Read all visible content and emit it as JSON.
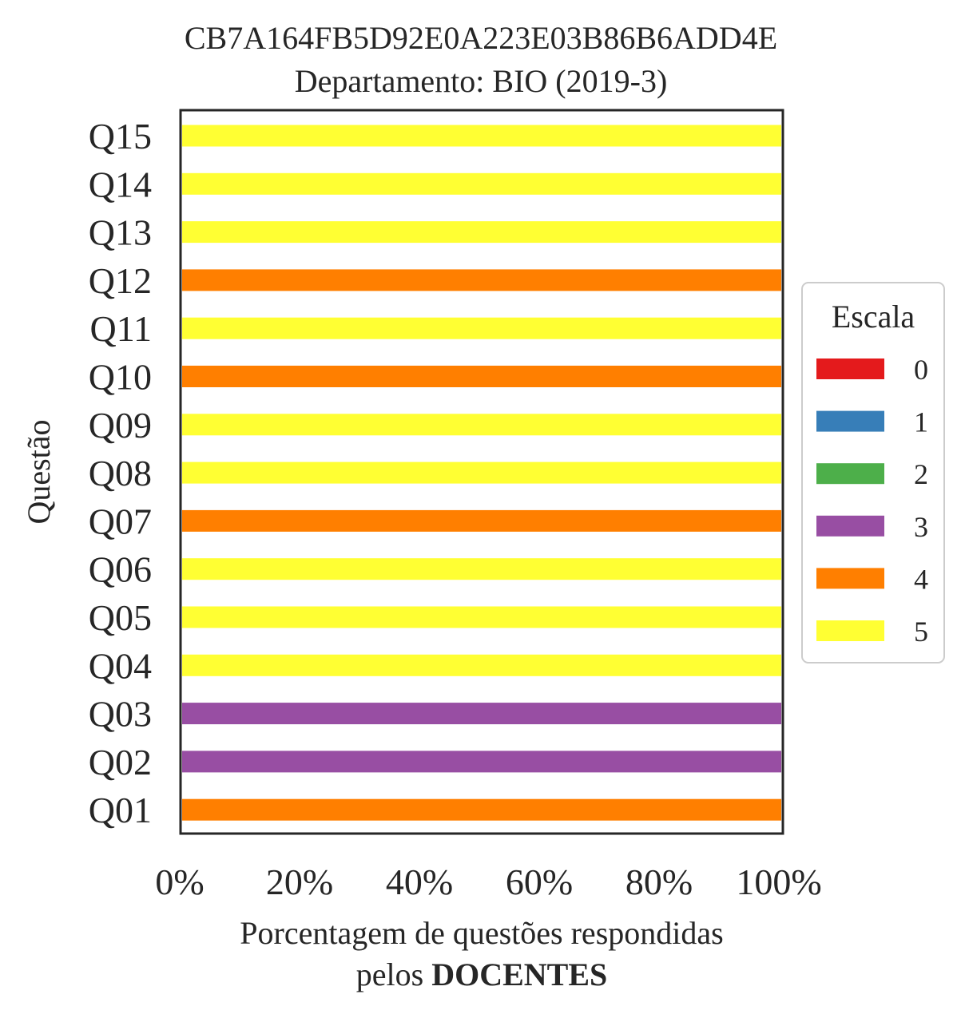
{
  "chart_data": {
    "type": "bar",
    "orientation": "horizontal",
    "stacked": true,
    "title_line1": "CB7A164FB5D92E0A223E03B86B6ADD4E",
    "title_line2": "Departamento: BIO (2019-3)",
    "ylabel": "Questão",
    "xlabel_line1": "Porcentagem de questões respondidas",
    "xlabel_line2_prefix": "pelos ",
    "xlabel_line2_bold": "DOCENTES",
    "xlim": [
      0,
      100
    ],
    "xticks": [
      "0%",
      "20%",
      "40%",
      "60%",
      "80%",
      "100%"
    ],
    "categories": [
      "Q01",
      "Q02",
      "Q03",
      "Q04",
      "Q05",
      "Q06",
      "Q07",
      "Q08",
      "Q09",
      "Q10",
      "Q11",
      "Q12",
      "Q13",
      "Q14",
      "Q15"
    ],
    "series": [
      {
        "name": "0",
        "color": "#e41a1c",
        "values": [
          0,
          0,
          0,
          0,
          0,
          0,
          0,
          0,
          0,
          0,
          0,
          0,
          0,
          0,
          0
        ]
      },
      {
        "name": "1",
        "color": "#377eb8",
        "values": [
          0,
          0,
          0,
          0,
          0,
          0,
          0,
          0,
          0,
          0,
          0,
          0,
          0,
          0,
          0
        ]
      },
      {
        "name": "2",
        "color": "#4daf4a",
        "values": [
          0,
          0,
          0,
          0,
          0,
          0,
          0,
          0,
          0,
          0,
          0,
          0,
          0,
          0,
          0
        ]
      },
      {
        "name": "3",
        "color": "#984ea3",
        "values": [
          0,
          100,
          100,
          0,
          0,
          0,
          0,
          0,
          0,
          0,
          0,
          0,
          0,
          0,
          0
        ]
      },
      {
        "name": "4",
        "color": "#ff7f00",
        "values": [
          100,
          0,
          0,
          0,
          0,
          0,
          100,
          0,
          0,
          100,
          0,
          100,
          0,
          0,
          0
        ]
      },
      {
        "name": "5",
        "color": "#ffff33",
        "values": [
          0,
          0,
          0,
          100,
          100,
          100,
          0,
          100,
          100,
          0,
          100,
          0,
          100,
          100,
          100
        ]
      }
    ],
    "legend": {
      "title": "Escala",
      "position": "center-right-outside"
    },
    "grid": false
  }
}
